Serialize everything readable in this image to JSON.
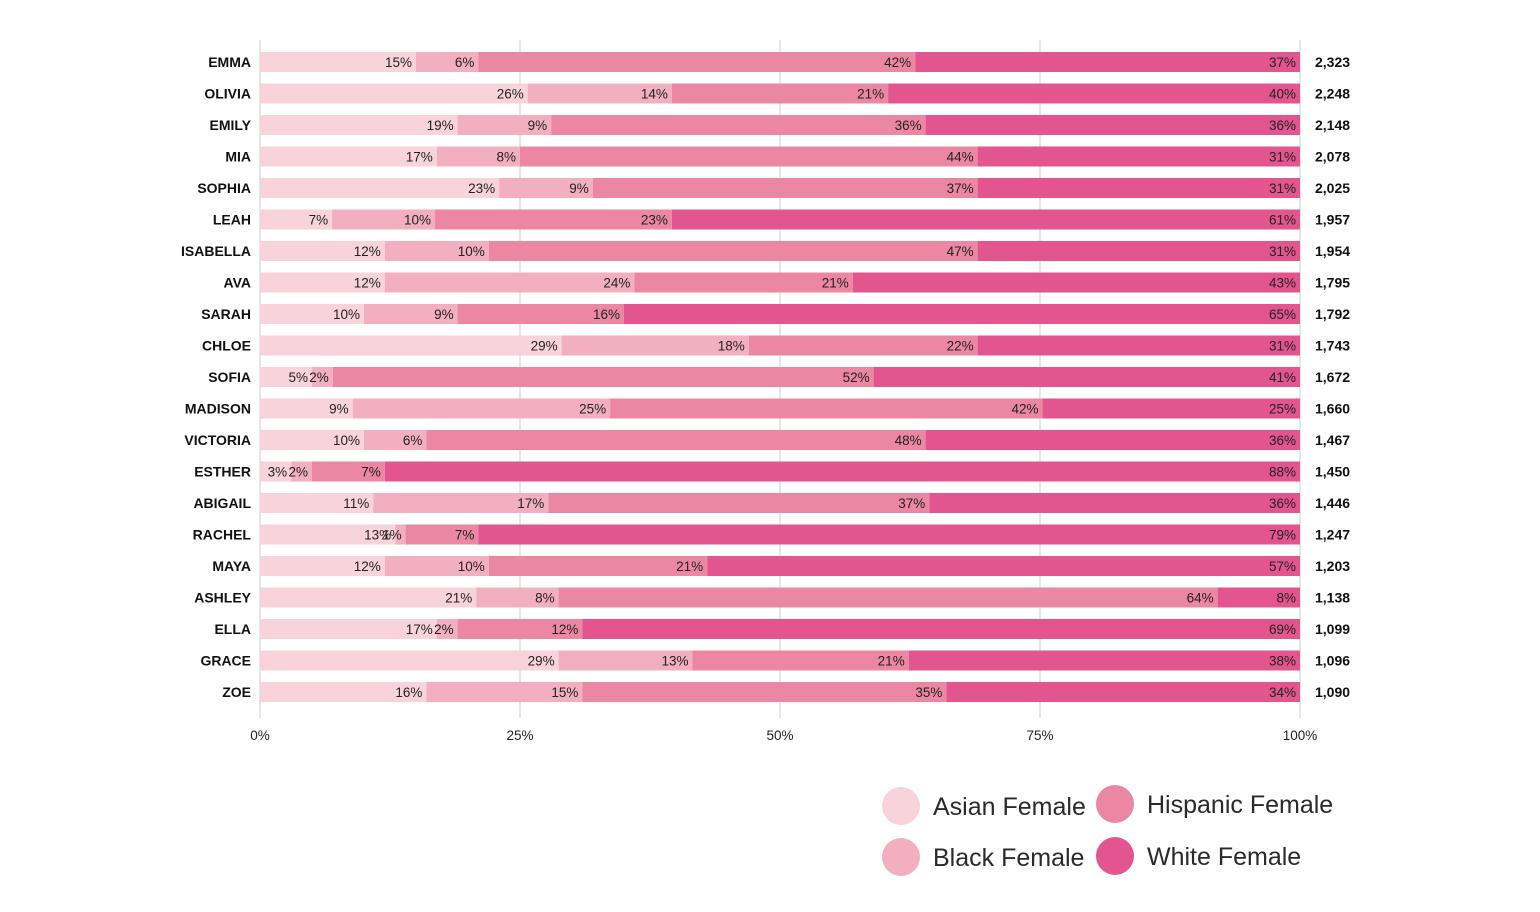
{
  "chart_data": {
    "type": "bar",
    "orientation": "horizontal",
    "stacked": true,
    "normalized": true,
    "categories": [
      "EMMA",
      "OLIVIA",
      "EMILY",
      "MIA",
      "SOPHIA",
      "LEAH",
      "ISABELLA",
      "AVA",
      "SARAH",
      "CHLOE",
      "SOFIA",
      "MADISON",
      "VICTORIA",
      "ESTHER",
      "ABIGAIL",
      "RACHEL",
      "MAYA",
      "ASHLEY",
      "ELLA",
      "GRACE",
      "ZOE"
    ],
    "totals": [
      "2,323",
      "2,248",
      "2,148",
      "2,078",
      "2,025",
      "1,957",
      "1,954",
      "1,795",
      "1,792",
      "1,743",
      "1,672",
      "1,660",
      "1,467",
      "1,450",
      "1,446",
      "1,247",
      "1,203",
      "1,138",
      "1,099",
      "1,096",
      "1,090"
    ],
    "series": [
      {
        "name": "Asian Female",
        "color": "#f8d3dc",
        "values": [
          15,
          26,
          19,
          17,
          23,
          7,
          12,
          12,
          10,
          29,
          5,
          9,
          10,
          3,
          11,
          13,
          12,
          21,
          17,
          29,
          16
        ]
      },
      {
        "name": "Black Female",
        "color": "#f2afc0",
        "values": [
          6,
          14,
          9,
          8,
          9,
          10,
          10,
          24,
          9,
          18,
          2,
          25,
          6,
          2,
          17,
          1,
          10,
          8,
          2,
          13,
          15
        ]
      },
      {
        "name": "Hispanic Female",
        "color": "#ec87a3",
        "values": [
          42,
          21,
          36,
          44,
          37,
          23,
          47,
          21,
          16,
          22,
          52,
          42,
          48,
          7,
          37,
          7,
          21,
          64,
          12,
          21,
          35
        ]
      },
      {
        "name": "White Female",
        "color": "#e2558e",
        "values": [
          37,
          40,
          36,
          31,
          31,
          61,
          31,
          43,
          65,
          31,
          41,
          25,
          36,
          88,
          36,
          79,
          57,
          8,
          69,
          38,
          34
        ]
      }
    ],
    "x_ticks": [
      "0%",
      "25%",
      "50%",
      "75%",
      "100%"
    ],
    "xlim": [
      0,
      100
    ],
    "grid": true,
    "legend_position": "bottom-right"
  }
}
